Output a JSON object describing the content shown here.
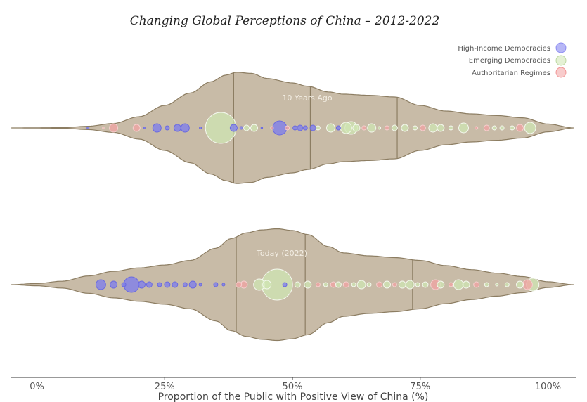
{
  "chart_data": {
    "type": "violin",
    "title": "Changing Global Perceptions of China – 2012-2022",
    "xlabel": "Proportion of the Public with Positive View of China (%)",
    "xlim": [
      -5,
      105
    ],
    "xticks": [
      0,
      25,
      50,
      75,
      100
    ],
    "xtick_labels": [
      "0%",
      "25%",
      "50%",
      "75%",
      "100%"
    ],
    "legend": {
      "placement": "top-right",
      "entries": [
        {
          "name": "High-Income Democracies",
          "color": "#7b7bef"
        },
        {
          "name": "Emerging Democracies",
          "color": "#cfe6b3"
        },
        {
          "name": "Authoritarian Regimes",
          "color": "#f2a3a3"
        }
      ]
    },
    "violin_color": "#c8bba7",
    "violin_edge": "#8c7d62",
    "panels": [
      {
        "label": "10 Years Ago",
        "quartiles": [
          38.5,
          53.5,
          70.5
        ],
        "density_profile": [
          [
            -5,
            0.0
          ],
          [
            5,
            0.005
          ],
          [
            10,
            0.03
          ],
          [
            15,
            0.08
          ],
          [
            20,
            0.2
          ],
          [
            25,
            0.4
          ],
          [
            30,
            0.62
          ],
          [
            34,
            0.82
          ],
          [
            37,
            0.94
          ],
          [
            39,
            0.99
          ],
          [
            42,
            0.97
          ],
          [
            45,
            0.88
          ],
          [
            50,
            0.8
          ],
          [
            53,
            0.74
          ],
          [
            57,
            0.64
          ],
          [
            60,
            0.6
          ],
          [
            65,
            0.58
          ],
          [
            70,
            0.55
          ],
          [
            75,
            0.4
          ],
          [
            80,
            0.3
          ],
          [
            85,
            0.25
          ],
          [
            90,
            0.22
          ],
          [
            95,
            0.18
          ],
          [
            100,
            0.07
          ],
          [
            105,
            0.0
          ]
        ],
        "points": [
          {
            "x": 10,
            "size": 1.5,
            "group": "High-Income Democracies"
          },
          {
            "x": 13,
            "size": 1,
            "group": "Authoritarian Regimes"
          },
          {
            "x": 15,
            "size": 6,
            "group": "Authoritarian Regimes"
          },
          {
            "x": 19.5,
            "size": 5,
            "group": "Authoritarian Regimes"
          },
          {
            "x": 21,
            "size": 1,
            "group": "High-Income Democracies"
          },
          {
            "x": 23.5,
            "size": 6,
            "group": "High-Income Democracies"
          },
          {
            "x": 25.5,
            "size": 3,
            "group": "High-Income Democracies"
          },
          {
            "x": 27.5,
            "size": 5,
            "group": "High-Income Democracies"
          },
          {
            "x": 29,
            "size": 6,
            "group": "High-Income Democracies"
          },
          {
            "x": 32,
            "size": 1.5,
            "group": "High-Income Democracies"
          },
          {
            "x": 36,
            "size": 22,
            "group": "Emerging Democracies"
          },
          {
            "x": 38.5,
            "size": 5,
            "group": "High-Income Democracies"
          },
          {
            "x": 40,
            "size": 2,
            "group": "High-Income Democracies"
          },
          {
            "x": 41,
            "size": 4,
            "group": "Emerging Democracies"
          },
          {
            "x": 42.5,
            "size": 5,
            "group": "Emerging Democracies"
          },
          {
            "x": 44,
            "size": 1,
            "group": "High-Income Democracies"
          },
          {
            "x": 46,
            "size": 2,
            "group": "Authoritarian Regimes"
          },
          {
            "x": 47.5,
            "size": 10,
            "group": "High-Income Democracies"
          },
          {
            "x": 49,
            "size": 3,
            "group": "Authoritarian Regimes"
          },
          {
            "x": 50.5,
            "size": 3,
            "group": "High-Income Democracies"
          },
          {
            "x": 51.5,
            "size": 4,
            "group": "High-Income Democracies"
          },
          {
            "x": 52.5,
            "size": 3,
            "group": "High-Income Democracies"
          },
          {
            "x": 54,
            "size": 4,
            "group": "High-Income Democracies"
          },
          {
            "x": 55,
            "size": 3,
            "group": "Emerging Democracies"
          },
          {
            "x": 57.5,
            "size": 6,
            "group": "Emerging Democracies"
          },
          {
            "x": 59,
            "size": 3,
            "group": "High-Income Democracies"
          },
          {
            "x": 60.5,
            "size": 8,
            "group": "Emerging Democracies"
          },
          {
            "x": 61.5,
            "size": 9,
            "group": "Emerging Democracies"
          },
          {
            "x": 62.5,
            "size": 5,
            "group": "Emerging Democracies"
          },
          {
            "x": 64,
            "size": 3,
            "group": "Authoritarian Regimes"
          },
          {
            "x": 65.5,
            "size": 6,
            "group": "Emerging Democracies"
          },
          {
            "x": 67,
            "size": 2,
            "group": "Emerging Democracies"
          },
          {
            "x": 68.5,
            "size": 3,
            "group": "Authoritarian Regimes"
          },
          {
            "x": 70,
            "size": 4,
            "group": "Emerging Democracies"
          },
          {
            "x": 72,
            "size": 5,
            "group": "Emerging Democracies"
          },
          {
            "x": 74,
            "size": 3,
            "group": "Emerging Democracies"
          },
          {
            "x": 75.5,
            "size": 4,
            "group": "Authoritarian Regimes"
          },
          {
            "x": 77.5,
            "size": 6,
            "group": "Emerging Democracies"
          },
          {
            "x": 79,
            "size": 5,
            "group": "Emerging Democracies"
          },
          {
            "x": 81,
            "size": 3,
            "group": "Emerging Democracies"
          },
          {
            "x": 83.5,
            "size": 7,
            "group": "Emerging Democracies"
          },
          {
            "x": 86,
            "size": 2,
            "group": "Authoritarian Regimes"
          },
          {
            "x": 88,
            "size": 4,
            "group": "Authoritarian Regimes"
          },
          {
            "x": 89.5,
            "size": 3,
            "group": "Emerging Democracies"
          },
          {
            "x": 91,
            "size": 3,
            "group": "Emerging Democracies"
          },
          {
            "x": 93,
            "size": 3,
            "group": "Emerging Democracies"
          },
          {
            "x": 94.5,
            "size": 5,
            "group": "Authoritarian Regimes"
          },
          {
            "x": 96.5,
            "size": 8,
            "group": "Emerging Democracies"
          }
        ]
      },
      {
        "label": "Today (2022)",
        "quartiles": [
          39,
          52.5,
          73.5
        ],
        "density_profile": [
          [
            -5,
            0.0
          ],
          [
            0,
            0.02
          ],
          [
            5,
            0.06
          ],
          [
            10,
            0.15
          ],
          [
            15,
            0.23
          ],
          [
            20,
            0.29
          ],
          [
            25,
            0.34
          ],
          [
            30,
            0.42
          ],
          [
            35,
            0.63
          ],
          [
            38,
            0.8
          ],
          [
            41,
            0.9
          ],
          [
            44,
            0.95
          ],
          [
            47,
            0.97
          ],
          [
            50,
            0.94
          ],
          [
            53,
            0.87
          ],
          [
            57,
            0.66
          ],
          [
            60,
            0.55
          ],
          [
            65,
            0.5
          ],
          [
            70,
            0.47
          ],
          [
            75,
            0.42
          ],
          [
            80,
            0.33
          ],
          [
            85,
            0.26
          ],
          [
            90,
            0.2
          ],
          [
            95,
            0.14
          ],
          [
            100,
            0.05
          ],
          [
            105,
            0.0
          ]
        ],
        "points": [
          {
            "x": 12.5,
            "size": 7,
            "group": "High-Income Democracies"
          },
          {
            "x": 15,
            "size": 5,
            "group": "High-Income Democracies"
          },
          {
            "x": 17,
            "size": 3,
            "group": "High-Income Democracies"
          },
          {
            "x": 18.5,
            "size": 11,
            "group": "High-Income Democracies"
          },
          {
            "x": 20.5,
            "size": 5,
            "group": "High-Income Democracies"
          },
          {
            "x": 22,
            "size": 4,
            "group": "High-Income Democracies"
          },
          {
            "x": 24,
            "size": 3,
            "group": "High-Income Democracies"
          },
          {
            "x": 25.5,
            "size": 4,
            "group": "High-Income Democracies"
          },
          {
            "x": 27,
            "size": 4,
            "group": "High-Income Democracies"
          },
          {
            "x": 29,
            "size": 3,
            "group": "High-Income Democracies"
          },
          {
            "x": 30.5,
            "size": 5,
            "group": "High-Income Democracies"
          },
          {
            "x": 32,
            "size": 2,
            "group": "High-Income Democracies"
          },
          {
            "x": 35,
            "size": 3,
            "group": "High-Income Democracies"
          },
          {
            "x": 36.5,
            "size": 2,
            "group": "High-Income Democracies"
          },
          {
            "x": 39.5,
            "size": 4,
            "group": "Authoritarian Regimes"
          },
          {
            "x": 40.5,
            "size": 5,
            "group": "Authoritarian Regimes"
          },
          {
            "x": 43.5,
            "size": 8,
            "group": "Emerging Democracies"
          },
          {
            "x": 45,
            "size": 6,
            "group": "Emerging Democracies"
          },
          {
            "x": 47,
            "size": 22,
            "group": "Emerging Democracies"
          },
          {
            "x": 48.5,
            "size": 3,
            "group": "High-Income Democracies"
          },
          {
            "x": 51,
            "size": 4,
            "group": "Emerging Democracies"
          },
          {
            "x": 53,
            "size": 5,
            "group": "Emerging Democracies"
          },
          {
            "x": 55,
            "size": 3,
            "group": "Authoritarian Regimes"
          },
          {
            "x": 56.5,
            "size": 3,
            "group": "Emerging Democracies"
          },
          {
            "x": 58,
            "size": 4,
            "group": "Authoritarian Regimes"
          },
          {
            "x": 59,
            "size": 4,
            "group": "Emerging Democracies"
          },
          {
            "x": 60.5,
            "size": 4,
            "group": "Authoritarian Regimes"
          },
          {
            "x": 62,
            "size": 3,
            "group": "Emerging Democracies"
          },
          {
            "x": 63.5,
            "size": 6,
            "group": "Emerging Democracies"
          },
          {
            "x": 65,
            "size": 3,
            "group": "Emerging Democracies"
          },
          {
            "x": 67,
            "size": 4,
            "group": "Authoritarian Regimes"
          },
          {
            "x": 68.5,
            "size": 5,
            "group": "Emerging Democracies"
          },
          {
            "x": 70,
            "size": 3,
            "group": "Authoritarian Regimes"
          },
          {
            "x": 71.5,
            "size": 5,
            "group": "Emerging Democracies"
          },
          {
            "x": 73,
            "size": 6,
            "group": "Emerging Democracies"
          },
          {
            "x": 74.5,
            "size": 3,
            "group": "Emerging Democracies"
          },
          {
            "x": 76,
            "size": 4,
            "group": "Emerging Democracies"
          },
          {
            "x": 78,
            "size": 7,
            "group": "Authoritarian Regimes"
          },
          {
            "x": 79,
            "size": 5,
            "group": "Emerging Democracies"
          },
          {
            "x": 81,
            "size": 3,
            "group": "Authoritarian Regimes"
          },
          {
            "x": 82.5,
            "size": 7,
            "group": "Emerging Democracies"
          },
          {
            "x": 84,
            "size": 5,
            "group": "Emerging Democracies"
          },
          {
            "x": 86,
            "size": 4,
            "group": "Authoritarian Regimes"
          },
          {
            "x": 88,
            "size": 3,
            "group": "Emerging Democracies"
          },
          {
            "x": 90,
            "size": 2,
            "group": "Emerging Democracies"
          },
          {
            "x": 92,
            "size": 3,
            "group": "Emerging Democracies"
          },
          {
            "x": 94.5,
            "size": 5,
            "group": "Emerging Democracies"
          },
          {
            "x": 96,
            "size": 7,
            "group": "Authoritarian Regimes"
          },
          {
            "x": 97,
            "size": 9,
            "group": "Emerging Democracies"
          }
        ]
      }
    ]
  }
}
